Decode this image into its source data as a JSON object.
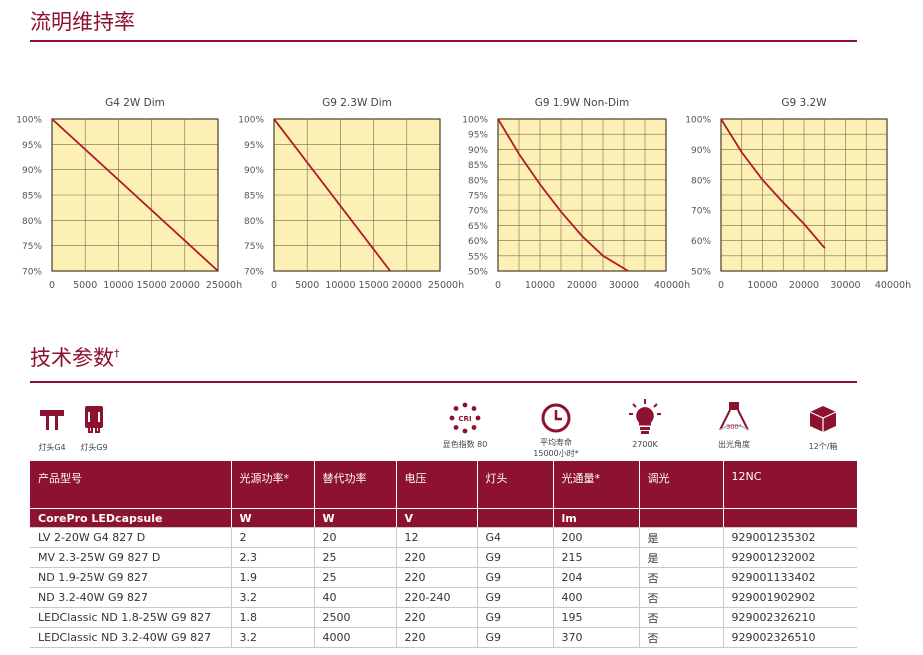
{
  "section1": {
    "title": "流明维持率"
  },
  "chart_data": [
    {
      "type": "line",
      "title": "G4 2W Dim",
      "x_unit": "h",
      "x_ticks": [
        0,
        5000,
        10000,
        15000,
        20000,
        25000
      ],
      "y_ticks": [
        70,
        75,
        80,
        85,
        90,
        95,
        100
      ],
      "y_unit": "%",
      "xlim": [
        0,
        25000
      ],
      "ylim": [
        70,
        100
      ],
      "grid": true,
      "series": [
        {
          "x": [
            0,
            25000
          ],
          "y": [
            100,
            70
          ]
        }
      ]
    },
    {
      "type": "line",
      "title": "G9 2.3W Dim",
      "x_unit": "h",
      "x_ticks": [
        0,
        5000,
        10000,
        15000,
        20000,
        25000
      ],
      "y_ticks": [
        70,
        75,
        80,
        85,
        90,
        95,
        100
      ],
      "y_unit": "%",
      "xlim": [
        0,
        25000
      ],
      "ylim": [
        70,
        100
      ],
      "grid": true,
      "series": [
        {
          "x": [
            0,
            17500
          ],
          "y": [
            100,
            70
          ]
        }
      ]
    },
    {
      "type": "line",
      "title": "G9 1.9W Non-Dim",
      "x_unit": "h",
      "x_ticks": [
        0,
        10000,
        20000,
        30000,
        40000
      ],
      "y_ticks": [
        50,
        55,
        60,
        65,
        70,
        75,
        80,
        85,
        90,
        95,
        100
      ],
      "y_unit": "%",
      "xlim": [
        0,
        40000
      ],
      "ylim": [
        50,
        100
      ],
      "grid": true,
      "series": [
        {
          "x": [
            0,
            5000,
            10000,
            15000,
            20000,
            25000,
            31000
          ],
          "y": [
            100,
            88.5,
            78.5,
            69.5,
            61.5,
            55,
            50
          ]
        }
      ]
    },
    {
      "type": "line",
      "title": "G9 3.2W",
      "x_unit": "h",
      "x_ticks": [
        0,
        10000,
        20000,
        30000,
        40000
      ],
      "y_ticks": [
        50,
        60,
        70,
        80,
        90,
        100
      ],
      "y_unit": "%",
      "xlim": [
        0,
        40000
      ],
      "ylim": [
        50,
        100
      ],
      "grid": true,
      "series": [
        {
          "x": [
            0,
            5000,
            10000,
            15000,
            20000,
            25000
          ],
          "y": [
            100,
            89,
            80,
            72.5,
            65.5,
            57.5
          ]
        }
      ]
    }
  ],
  "section2": {
    "title": "技术参数",
    "title_mark": "†"
  },
  "icons": {
    "base_g4": "灯头G4",
    "base_g9": "灯头G9",
    "cri": "显色指数 80",
    "cri_badge": "CRI",
    "life_line1": "平均寿命",
    "life_line2": "15000小时*",
    "color_temp": "2700K",
    "beam": "出光角度",
    "beam_value": "300°",
    "box": "12个/箱"
  },
  "table": {
    "headers": [
      "产品型号",
      "光源功率*",
      "替代功率",
      "电压",
      "灯头",
      "光通量*",
      "调光",
      "12NC"
    ],
    "group": [
      "CorePro LEDcapsule",
      "W",
      "W",
      "V",
      "",
      "lm",
      "",
      ""
    ],
    "rows": [
      [
        "LV 2-20W G4 827 D",
        "2",
        "20",
        "12",
        "G4",
        "200",
        "是",
        "929001235302"
      ],
      [
        "MV 2.3-25W G9 827 D",
        "2.3",
        "25",
        "220",
        "G9",
        "215",
        "是",
        "929001232002"
      ],
      [
        "ND 1.9-25W G9 827",
        "1.9",
        "25",
        "220",
        "G9",
        "204",
        "否",
        "929001133402"
      ],
      [
        "ND 3.2-40W G9 827",
        "3.2",
        "40",
        "220-240",
        "G9",
        "400",
        "否",
        "929001902902"
      ],
      [
        "LEDClassic ND 1.8-25W G9 827",
        "1.8",
        "2500",
        "220",
        "G9",
        "195",
        "否",
        "929002326210"
      ],
      [
        "LEDClassic ND 3.2-40W G9 827",
        "3.2",
        "4000",
        "220",
        "G9",
        "370",
        "否",
        "929002326510"
      ]
    ]
  },
  "colors": {
    "accent": "#8c1230",
    "plot_bg": "#fdf0b4",
    "grid": "#7a6a55",
    "line": "#b2182b"
  }
}
